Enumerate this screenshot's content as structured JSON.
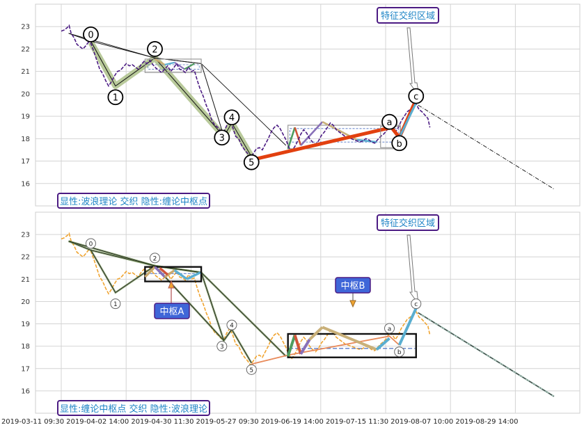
{
  "chart_data": [
    {
      "type": "line",
      "panel": "top",
      "title": "",
      "xlabel": "",
      "ylabel": "",
      "ylim": [
        15,
        24
      ],
      "yticks": [
        16,
        17,
        18,
        19,
        20,
        21,
        22,
        23
      ],
      "grid": true,
      "x_index_range": [
        0,
        100
      ],
      "annotation": "显性:波浪理论 交织 隐性:缠论中枢点",
      "region_label": "特征交织区域",
      "wave_labels": [
        {
          "text": "0",
          "xi": 6,
          "y": 22.65
        },
        {
          "text": "1",
          "xi": 11,
          "y": 19.85
        },
        {
          "text": "2",
          "xi": 19,
          "y": 22.0
        },
        {
          "text": "3",
          "xi": 32.6,
          "y": 18.05
        },
        {
          "text": "4",
          "xi": 34.6,
          "y": 18.95
        },
        {
          "text": "5",
          "xi": 38.6,
          "y": 16.95
        },
        {
          "text": "a",
          "xi": 66.6,
          "y": 18.75
        },
        {
          "text": "b",
          "xi": 68.6,
          "y": 17.8
        },
        {
          "text": "c",
          "xi": 72,
          "y": 19.9
        }
      ],
      "price_series": [
        [
          0,
          22.8
        ],
        [
          0.6,
          22.85
        ],
        [
          1.2,
          22.95
        ],
        [
          1.6,
          23.05
        ],
        [
          2,
          22.7
        ],
        [
          2.6,
          22.5
        ],
        [
          3.2,
          22.2
        ],
        [
          3.8,
          22.1
        ],
        [
          4.4,
          22.0
        ],
        [
          5,
          22.15
        ],
        [
          5.5,
          22.3
        ],
        [
          6,
          22.25
        ],
        [
          6.6,
          21.9
        ],
        [
          7.2,
          21.5
        ],
        [
          7.8,
          21.1
        ],
        [
          8.4,
          20.9
        ],
        [
          9,
          20.6
        ],
        [
          9.6,
          20.35
        ],
        [
          10.2,
          20.55
        ],
        [
          10.8,
          20.8
        ],
        [
          11.4,
          21.0
        ],
        [
          12,
          21.05
        ],
        [
          12.6,
          21.2
        ],
        [
          13.2,
          21.35
        ],
        [
          13.8,
          21.25
        ],
        [
          14.4,
          21.3
        ],
        [
          15,
          21.2
        ],
        [
          15.6,
          21.1
        ],
        [
          16.2,
          21.3
        ],
        [
          16.8,
          21.45
        ],
        [
          17.4,
          21.35
        ],
        [
          18,
          21.5
        ],
        [
          18.6,
          21.3
        ],
        [
          19.2,
          21.15
        ],
        [
          19.8,
          21.05
        ],
        [
          20.4,
          20.95
        ],
        [
          21,
          21.1
        ],
        [
          21.6,
          21.25
        ],
        [
          22.2,
          21.0
        ],
        [
          22.8,
          21.15
        ],
        [
          23.4,
          21.35
        ],
        [
          24,
          21.1
        ],
        [
          24.6,
          21.05
        ],
        [
          25.2,
          20.95
        ],
        [
          25.8,
          21.2
        ],
        [
          26.4,
          21.0
        ],
        [
          27,
          21.05
        ],
        [
          27.6,
          20.6
        ],
        [
          28.2,
          20.2
        ],
        [
          28.8,
          19.9
        ],
        [
          29.4,
          19.5
        ],
        [
          30,
          19.2
        ],
        [
          30.6,
          18.8
        ],
        [
          31.2,
          18.6
        ],
        [
          31.8,
          18.5
        ],
        [
          32.4,
          18.35
        ],
        [
          33,
          18.3
        ],
        [
          33.6,
          18.6
        ],
        [
          34.2,
          18.8
        ],
        [
          34.8,
          18.5
        ],
        [
          35.4,
          18.1
        ],
        [
          36,
          18.0
        ],
        [
          36.6,
          17.7
        ],
        [
          37.2,
          17.5
        ],
        [
          37.8,
          17.35
        ],
        [
          38.4,
          17.15
        ],
        [
          39,
          17.35
        ],
        [
          39.6,
          17.55
        ],
        [
          40.2,
          17.6
        ],
        [
          40.8,
          17.5
        ],
        [
          41.4,
          17.75
        ],
        [
          42,
          18.0
        ],
        [
          42.6,
          18.3
        ],
        [
          43.2,
          18.5
        ],
        [
          43.8,
          18.6
        ],
        [
          44.4,
          18.45
        ],
        [
          45,
          18.2
        ],
        [
          45.6,
          17.95
        ],
        [
          46.2,
          17.6
        ],
        [
          46.8,
          17.45
        ],
        [
          47.4,
          17.65
        ],
        [
          48,
          17.9
        ],
        [
          48.6,
          18.2
        ],
        [
          49.2,
          18.4
        ],
        [
          49.8,
          18.25
        ],
        [
          50.4,
          18.0
        ],
        [
          51,
          17.85
        ],
        [
          51.6,
          17.75
        ],
        [
          52.2,
          17.9
        ],
        [
          52.8,
          18.15
        ],
        [
          53.4,
          18.3
        ],
        [
          54,
          18.5
        ],
        [
          54.6,
          18.7
        ],
        [
          55.2,
          18.6
        ],
        [
          55.8,
          18.4
        ],
        [
          56.4,
          18.3
        ],
        [
          57,
          18.2
        ],
        [
          57.6,
          18.1
        ],
        [
          58.2,
          18.05
        ],
        [
          58.8,
          18.0
        ],
        [
          59.4,
          17.95
        ],
        [
          60,
          17.9
        ],
        [
          60.6,
          17.85
        ],
        [
          61.2,
          17.9
        ],
        [
          61.8,
          18.0
        ],
        [
          62.4,
          17.95
        ],
        [
          63,
          17.85
        ],
        [
          63.6,
          17.8
        ],
        [
          64.2,
          17.95
        ],
        [
          64.8,
          18.1
        ],
        [
          65.4,
          18.2
        ],
        [
          66,
          18.35
        ],
        [
          66.6,
          18.6
        ],
        [
          67.2,
          18.5
        ],
        [
          67.8,
          18.3
        ],
        [
          68.4,
          18.5
        ],
        [
          69,
          18.8
        ],
        [
          69.6,
          19.0
        ],
        [
          70.2,
          19.2
        ],
        [
          70.8,
          19.3
        ],
        [
          71.4,
          19.4
        ],
        [
          72,
          19.55
        ],
        [
          72.6,
          19.3
        ],
        [
          73.2,
          19.2
        ],
        [
          73.8,
          19.05
        ],
        [
          74.4,
          18.9
        ],
        [
          74.8,
          18.5
        ]
      ],
      "projection": [
        [
          72.4,
          19.5
        ],
        [
          100,
          15.75
        ]
      ]
    },
    {
      "type": "line",
      "panel": "bottom",
      "title": "",
      "xlabel": "",
      "ylabel": "",
      "ylim": [
        15,
        24
      ],
      "yticks": [
        16,
        17,
        18,
        19,
        20,
        21,
        22,
        23
      ],
      "xticks": [
        "2019-03-11 09:30",
        "2019-04-02 14:00",
        "2019-04-30 11:30",
        "2019-05-27 09:30",
        "2019-06-19 14:00",
        "2019-07-15 11:30",
        "2019-08-07 10:00",
        "2019-08-29 14:00"
      ],
      "grid": true,
      "annotation": "显性:缠论中枢点 交织 隐性:波浪理论",
      "region_label": "特征交织区域",
      "pivot_labels": [
        "中枢A",
        "中枢B"
      ],
      "wave_labels": [
        {
          "text": "0",
          "xi": 6,
          "y": 22.6
        },
        {
          "text": "1",
          "xi": 11,
          "y": 19.9
        },
        {
          "text": "2",
          "xi": 19,
          "y": 21.95
        },
        {
          "text": "3",
          "xi": 32.6,
          "y": 18.0
        },
        {
          "text": "4",
          "xi": 34.6,
          "y": 18.95
        },
        {
          "text": "5",
          "xi": 38.6,
          "y": 16.95
        },
        {
          "text": "a",
          "xi": 66.6,
          "y": 18.8
        },
        {
          "text": "b",
          "xi": 68.6,
          "y": 17.75
        },
        {
          "text": "c",
          "xi": 72,
          "y": 19.9
        }
      ]
    }
  ]
}
